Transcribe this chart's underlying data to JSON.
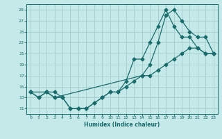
{
  "title": "",
  "xlabel": "Humidex (Indice chaleur)",
  "ylabel": "",
  "background_color": "#c5e8e8",
  "grid_color": "#a8d0d0",
  "line_color": "#1a6b6b",
  "xlim": [
    -0.5,
    23.5
  ],
  "ylim": [
    10,
    30
  ],
  "yticks": [
    11,
    13,
    15,
    17,
    19,
    21,
    23,
    25,
    27,
    29
  ],
  "xticks": [
    0,
    1,
    2,
    3,
    4,
    5,
    6,
    7,
    8,
    9,
    10,
    11,
    12,
    13,
    14,
    15,
    16,
    17,
    18,
    19,
    20,
    21,
    22,
    23
  ],
  "line1_x": [
    0,
    1,
    2,
    3,
    4,
    5,
    6,
    7,
    8,
    9,
    10,
    11,
    12,
    13,
    14,
    15,
    16,
    17,
    18,
    19,
    20,
    21,
    22,
    23
  ],
  "line1_y": [
    14,
    13,
    14,
    14,
    13,
    11,
    11,
    11,
    12,
    13,
    14,
    14,
    15,
    16,
    17,
    17,
    18,
    19,
    20,
    21,
    22,
    22,
    21,
    21
  ],
  "line2_x": [
    0,
    1,
    2,
    3,
    4,
    5,
    6,
    7,
    8,
    9,
    10,
    11,
    12,
    13,
    14,
    15,
    16,
    17,
    18,
    19,
    20,
    21,
    22,
    23
  ],
  "line2_y": [
    14,
    13,
    14,
    13,
    13,
    11,
    11,
    11,
    12,
    13,
    14,
    14,
    16,
    20,
    20,
    23,
    26,
    29,
    26,
    24,
    24,
    22,
    21,
    21
  ],
  "line3_x": [
    0,
    2,
    3,
    14,
    15,
    16,
    17,
    18,
    19,
    20,
    21,
    22,
    23
  ],
  "line3_y": [
    14,
    14,
    13,
    17,
    19,
    23,
    28,
    29,
    27,
    25,
    24,
    24,
    21
  ]
}
